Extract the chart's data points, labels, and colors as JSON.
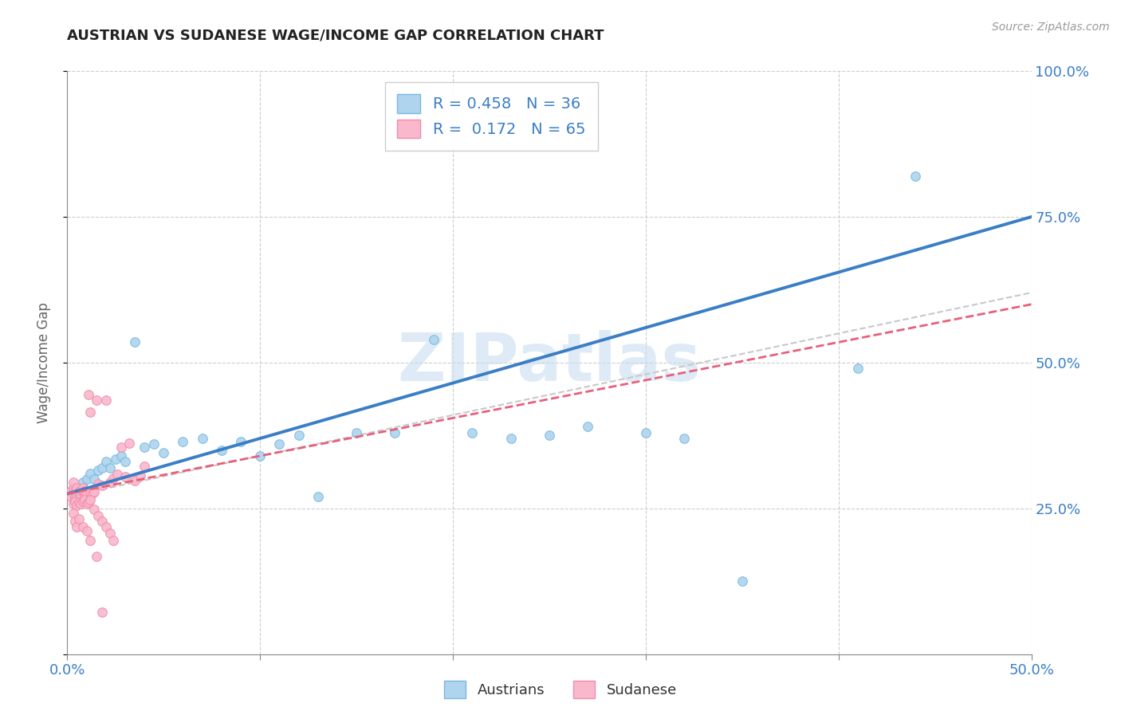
{
  "title": "AUSTRIAN VS SUDANESE WAGE/INCOME GAP CORRELATION CHART",
  "source": "Source: ZipAtlas.com",
  "ylabel_label": "Wage/Income Gap",
  "xlim": [
    0.0,
    0.5
  ],
  "ylim": [
    0.0,
    1.0
  ],
  "xtick_positions": [
    0.0,
    0.1,
    0.2,
    0.3,
    0.4,
    0.5
  ],
  "xticklabels": [
    "0.0%",
    "",
    "",
    "",
    "",
    "50.0%"
  ],
  "ytick_positions": [
    0.0,
    0.25,
    0.5,
    0.75,
    1.0
  ],
  "yticklabels_right": [
    "",
    "25.0%",
    "50.0%",
    "75.0%",
    "100.0%"
  ],
  "blue_face": "#aed4ee",
  "blue_edge": "#7ab8e0",
  "pink_face": "#f9b8cc",
  "pink_edge": "#f08caa",
  "trend_blue_color": "#3a7ec6",
  "trend_pink_color": "#e8607a",
  "trend_dashed_color": "#c8c8c8",
  "label_color": "#3a7ec6",
  "R_austrians": 0.458,
  "N_austrians": 36,
  "R_sudanese": 0.172,
  "N_sudanese": 65,
  "legend_label_austrians": "Austrians",
  "legend_label_sudanese": "Sudanese",
  "watermark": "ZIPatlas",
  "watermark_color": "#c8dff0",
  "austrians_x": [
    0.005,
    0.008,
    0.01,
    0.012,
    0.014,
    0.016,
    0.018,
    0.02,
    0.022,
    0.025,
    0.028,
    0.03,
    0.035,
    0.04,
    0.045,
    0.05,
    0.06,
    0.07,
    0.08,
    0.09,
    0.1,
    0.11,
    0.12,
    0.13,
    0.15,
    0.17,
    0.19,
    0.21,
    0.23,
    0.25,
    0.27,
    0.3,
    0.32,
    0.35,
    0.41,
    0.44
  ],
  "austrians_y": [
    0.285,
    0.295,
    0.3,
    0.31,
    0.3,
    0.315,
    0.32,
    0.33,
    0.32,
    0.335,
    0.34,
    0.33,
    0.535,
    0.355,
    0.36,
    0.345,
    0.365,
    0.37,
    0.35,
    0.365,
    0.34,
    0.36,
    0.375,
    0.27,
    0.38,
    0.38,
    0.54,
    0.38,
    0.37,
    0.375,
    0.39,
    0.38,
    0.37,
    0.125,
    0.49,
    0.82
  ],
  "sudanese_x": [
    0.002,
    0.002,
    0.003,
    0.003,
    0.004,
    0.004,
    0.004,
    0.005,
    0.005,
    0.005,
    0.006,
    0.006,
    0.006,
    0.007,
    0.007,
    0.007,
    0.008,
    0.008,
    0.009,
    0.009,
    0.01,
    0.01,
    0.011,
    0.012,
    0.012,
    0.013,
    0.014,
    0.015,
    0.016,
    0.018,
    0.02,
    0.022,
    0.024,
    0.026,
    0.028,
    0.03,
    0.032,
    0.035,
    0.038,
    0.04,
    0.003,
    0.004,
    0.005,
    0.006,
    0.007,
    0.008,
    0.009,
    0.01,
    0.011,
    0.012,
    0.014,
    0.016,
    0.018,
    0.02,
    0.022,
    0.024,
    0.003,
    0.004,
    0.005,
    0.006,
    0.008,
    0.01,
    0.012,
    0.015,
    0.018
  ],
  "sudanese_y": [
    0.28,
    0.27,
    0.285,
    0.295,
    0.28,
    0.27,
    0.265,
    0.278,
    0.285,
    0.272,
    0.278,
    0.265,
    0.275,
    0.28,
    0.27,
    0.26,
    0.278,
    0.285,
    0.275,
    0.28,
    0.272,
    0.275,
    0.445,
    0.415,
    0.278,
    0.275,
    0.278,
    0.435,
    0.292,
    0.29,
    0.436,
    0.295,
    0.302,
    0.308,
    0.355,
    0.305,
    0.362,
    0.298,
    0.306,
    0.322,
    0.258,
    0.262,
    0.255,
    0.26,
    0.258,
    0.262,
    0.265,
    0.258,
    0.26,
    0.265,
    0.248,
    0.238,
    0.228,
    0.218,
    0.208,
    0.195,
    0.242,
    0.228,
    0.218,
    0.232,
    0.218,
    0.212,
    0.195,
    0.168,
    0.072
  ],
  "trend_blue_x0": 0.0,
  "trend_blue_y0": 0.275,
  "trend_blue_x1": 0.5,
  "trend_blue_y1": 0.75,
  "trend_pink_x0": 0.0,
  "trend_pink_y0": 0.275,
  "trend_pink_x1": 0.5,
  "trend_pink_y1": 0.6,
  "trend_dashed_x0": 0.0,
  "trend_dashed_y0": 0.27,
  "trend_dashed_x1": 0.5,
  "trend_dashed_y1": 0.62
}
